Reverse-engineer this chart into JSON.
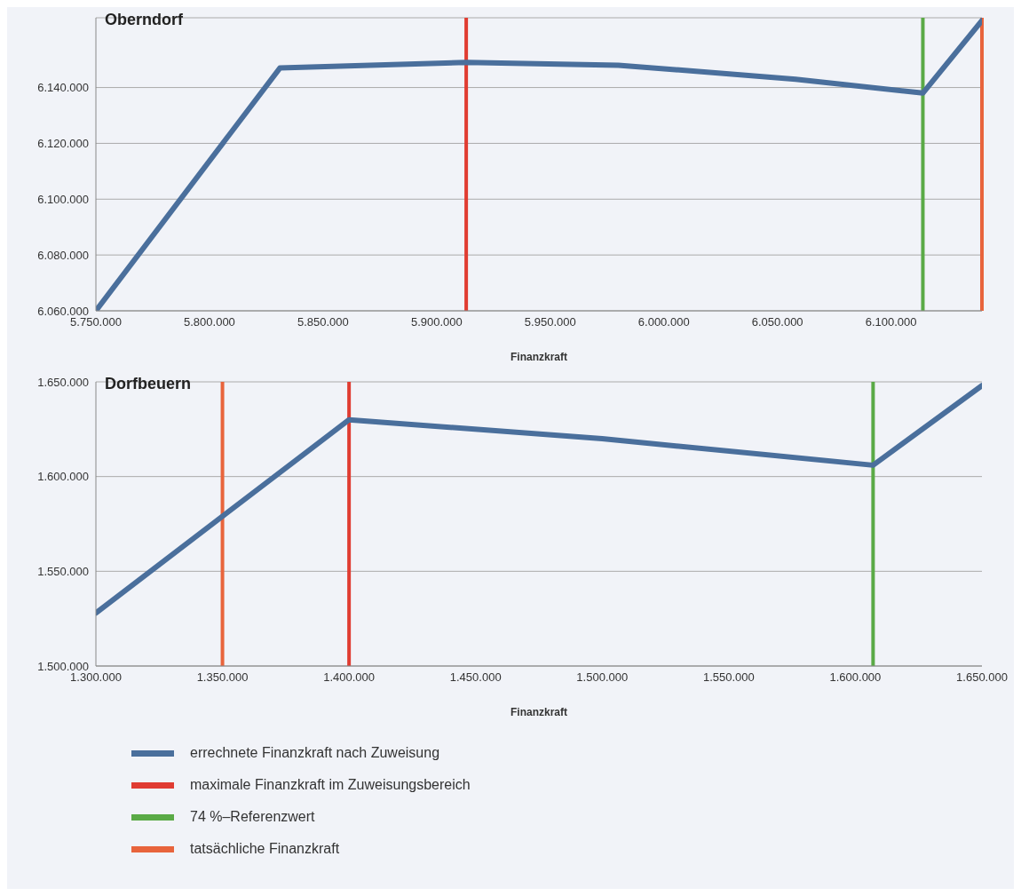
{
  "chart_data": [
    {
      "type": "line",
      "title": "Oberndorf",
      "xlabel": "Finanzkraft",
      "grid": "y",
      "x": [
        5750000,
        5831000,
        5913000,
        5980000,
        6058000,
        6114000,
        6140000
      ],
      "series": [
        {
          "color": "#4a6f9c",
          "values": [
            6060000,
            6147000,
            6149000,
            6148000,
            6143000,
            6138000,
            6164000
          ]
        }
      ],
      "xlim": [
        5750000,
        6140000
      ],
      "xticks": [
        {
          "value": 5750000,
          "label": "5.750.000"
        },
        {
          "value": 5800000,
          "label": "5.800.000"
        },
        {
          "value": 5850000,
          "label": "5.850.000"
        },
        {
          "value": 5900000,
          "label": "5.900.000"
        },
        {
          "value": 5950000,
          "label": "5.950.000"
        },
        {
          "value": 6000000,
          "label": "6.000.000"
        },
        {
          "value": 6050000,
          "label": "6.050.000"
        },
        {
          "value": 6100000,
          "label": "6.100.000"
        }
      ],
      "ylim": [
        6060000,
        6165000
      ],
      "yticks": [
        {
          "value": 6060000,
          "label": "6.060.000"
        },
        {
          "value": 6080000,
          "label": "6.080.000"
        },
        {
          "value": 6100000,
          "label": "6.100.000"
        },
        {
          "value": 6120000,
          "label": "6.120.000"
        },
        {
          "value": 6140000,
          "label": "6.140.000"
        }
      ],
      "ref_lines": [
        {
          "axis": "x",
          "value": 5913000,
          "color": "#e03c31"
        },
        {
          "axis": "x",
          "value": 6114000,
          "color": "#5aaa46"
        },
        {
          "axis": "x",
          "value": 6140000,
          "color": "#e8643c"
        }
      ]
    },
    {
      "type": "line",
      "title": "Dorfbeuern",
      "xlabel": "Finanzkraft",
      "grid": "y",
      "legend": "bottom",
      "x": [
        1300000,
        1400000,
        1500000,
        1607000,
        1650000
      ],
      "series": [
        {
          "name": "errechnete Finanzkraft nach Zuweisung",
          "color": "#4a6f9c",
          "values": [
            1528000,
            1630000,
            1620000,
            1606000,
            1648000
          ]
        }
      ],
      "xlim": [
        1300000,
        1650000
      ],
      "xticks": [
        {
          "value": 1300000,
          "label": "1.300.000"
        },
        {
          "value": 1350000,
          "label": "1.350.000"
        },
        {
          "value": 1400000,
          "label": "1.400.000"
        },
        {
          "value": 1450000,
          "label": "1.450.000"
        },
        {
          "value": 1500000,
          "label": "1.500.000"
        },
        {
          "value": 1550000,
          "label": "1.550.000"
        },
        {
          "value": 1600000,
          "label": "1.600.000"
        },
        {
          "value": 1650000,
          "label": "1.650.000"
        }
      ],
      "ylim": [
        1500000,
        1650000
      ],
      "yticks": [
        {
          "value": 1500000,
          "label": "1.500.000"
        },
        {
          "value": 1550000,
          "label": "1.550.000"
        },
        {
          "value": 1600000,
          "label": "1.600.000"
        },
        {
          "value": 1650000,
          "label": "1.650.000"
        }
      ],
      "ref_lines": [
        {
          "axis": "x",
          "value": 1400000,
          "color": "#e03c31",
          "label": "maximale Finanzkraft im Zuweisungsbereich"
        },
        {
          "axis": "x",
          "value": 1607000,
          "color": "#5aaa46",
          "label": "74 %–Referenzwert"
        },
        {
          "axis": "x",
          "value": 1350000,
          "color": "#e8643c",
          "label": "tatsächliche Finanzkraft"
        }
      ]
    }
  ]
}
